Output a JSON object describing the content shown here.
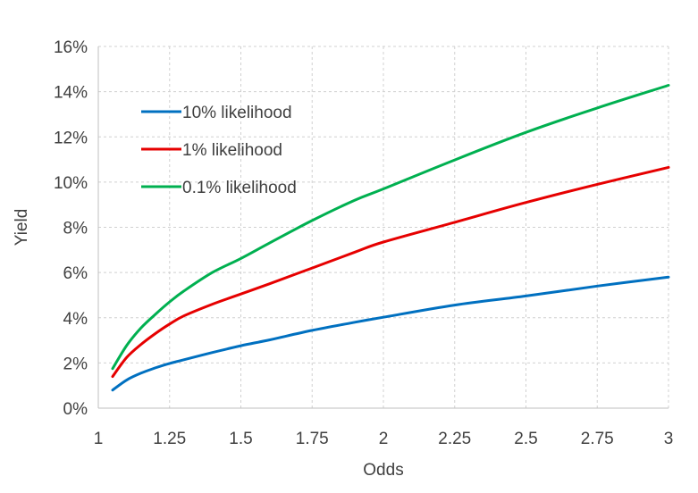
{
  "chart_data": {
    "type": "line",
    "xlabel": "Odds",
    "ylabel": "Yield",
    "xlim": [
      1,
      3
    ],
    "ylim": [
      0,
      0.16
    ],
    "x_ticks": [
      1,
      1.25,
      1.5,
      1.75,
      2,
      2.25,
      2.5,
      2.75,
      3
    ],
    "x_tick_labels": [
      "1",
      "1.25",
      "1.5",
      "1.75",
      "2",
      "2.25",
      "2.5",
      "2.75",
      "3"
    ],
    "y_ticks": [
      0,
      0.02,
      0.04,
      0.06,
      0.08,
      0.1,
      0.12,
      0.14,
      0.16
    ],
    "y_tick_labels": [
      "0%",
      "2%",
      "4%",
      "6%",
      "8%",
      "10%",
      "12%",
      "14%",
      "16%"
    ],
    "grid": true,
    "legend_position": "top-left",
    "series": [
      {
        "name": "10% likelihood",
        "color": "#0070C0",
        "x": [
          1.05,
          1.1,
          1.15,
          1.2,
          1.25,
          1.3,
          1.4,
          1.5,
          1.6,
          1.75,
          1.9,
          2.0,
          2.25,
          2.5,
          2.75,
          3.0
        ],
        "y": [
          0.008,
          0.0125,
          0.0155,
          0.0178,
          0.0198,
          0.0214,
          0.0246,
          0.0276,
          0.0302,
          0.0344,
          0.038,
          0.0402,
          0.0456,
          0.0496,
          0.054,
          0.058
        ]
      },
      {
        "name": "1% likelihood",
        "color": "#E60000",
        "x": [
          1.05,
          1.1,
          1.15,
          1.2,
          1.25,
          1.3,
          1.4,
          1.5,
          1.6,
          1.75,
          1.9,
          2.0,
          2.25,
          2.5,
          2.75,
          3.0
        ],
        "y": [
          0.014,
          0.0225,
          0.0282,
          0.033,
          0.0372,
          0.0408,
          0.046,
          0.0505,
          0.055,
          0.062,
          0.069,
          0.0735,
          0.0822,
          0.091,
          0.099,
          0.1065
        ]
      },
      {
        "name": "0.1% likelihood",
        "color": "#00B050",
        "x": [
          1.05,
          1.1,
          1.15,
          1.2,
          1.25,
          1.3,
          1.4,
          1.5,
          1.6,
          1.75,
          1.9,
          2.0,
          2.25,
          2.5,
          2.75,
          3.0
        ],
        "y": [
          0.0175,
          0.0278,
          0.0355,
          0.0415,
          0.047,
          0.0518,
          0.06,
          0.0662,
          0.073,
          0.083,
          0.092,
          0.097,
          0.1098,
          0.122,
          0.1328,
          0.1428
        ]
      }
    ]
  }
}
